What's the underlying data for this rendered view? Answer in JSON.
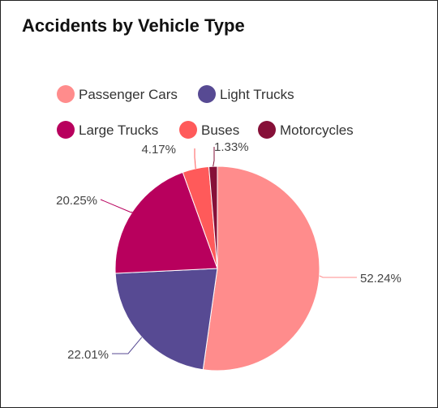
{
  "chart_data": {
    "type": "pie",
    "title": "Accidents by Vehicle Type",
    "legend_position": "top",
    "slices": [
      {
        "label": "Passenger Cars",
        "value": 52.24,
        "display": "52.24%",
        "color": "#FF8C8C"
      },
      {
        "label": "Light Trucks",
        "value": 22.01,
        "display": "22.01%",
        "color": "#574A93"
      },
      {
        "label": "Large Trucks",
        "value": 20.25,
        "display": "20.25%",
        "color": "#B8005D"
      },
      {
        "label": "Buses",
        "value": 4.17,
        "display": "4.17%",
        "color": "#FF5A5A"
      },
      {
        "label": "Motorcycles",
        "value": 1.33,
        "display": "1.33%",
        "color": "#861038"
      }
    ]
  }
}
